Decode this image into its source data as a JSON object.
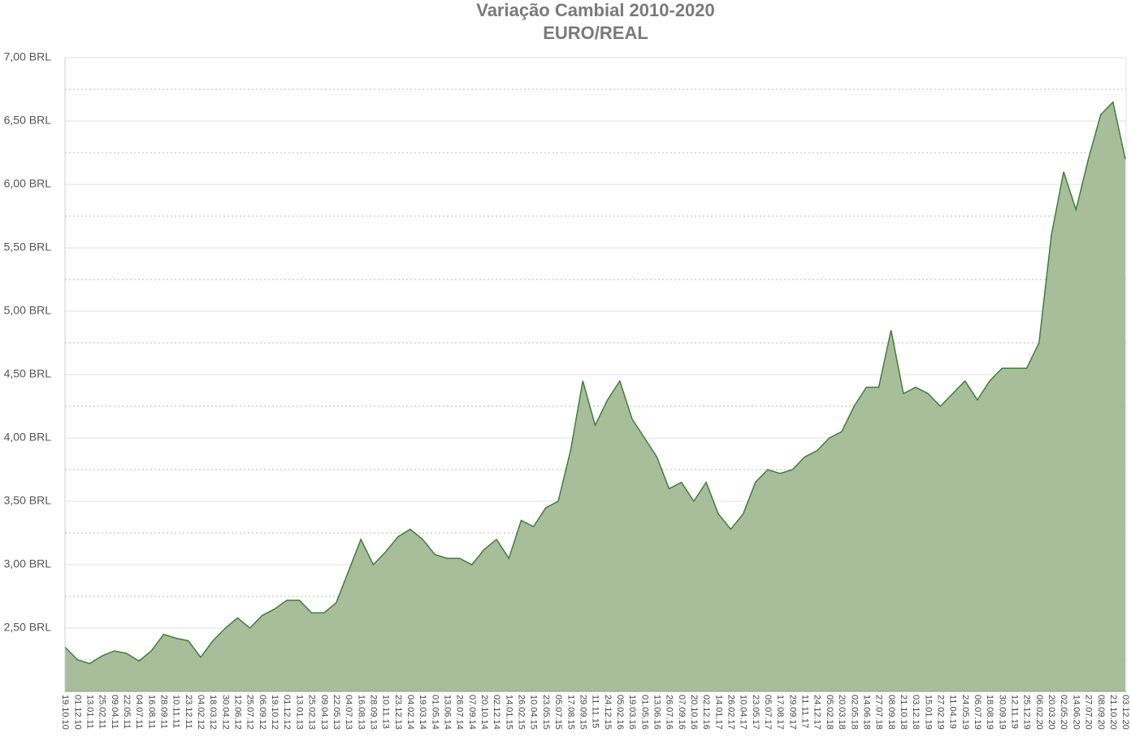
{
  "chart_data": {
    "type": "area",
    "title": "Variação Cambial 2010-2020",
    "subtitle": "EURO/REAL",
    "categories": [
      "19.10.10",
      "01.12.10",
      "13.01.11",
      "25.02.11",
      "09.04.11",
      "22.05.11",
      "04.07.11",
      "16.08.11",
      "28.09.11",
      "10.11.11",
      "23.12.11",
      "04.02.12",
      "18.03.12",
      "30.04.12",
      "12.06.12",
      "25.07.12",
      "06.09.12",
      "19.10.12",
      "01.12.12",
      "13.01.13",
      "25.02.13",
      "09.04.13",
      "22.05.13",
      "04.07.13",
      "16.08.13",
      "28.09.13",
      "10.11.13",
      "23.12.13",
      "04.02.14",
      "19.03.14",
      "01.05.14",
      "13.06.14",
      "26.07.14",
      "07.09.14",
      "20.10.14",
      "02.12.14",
      "14.01.15",
      "26.02.15",
      "10.04.15",
      "23.05.15",
      "05.07.15",
      "17.08.15",
      "29.09.15",
      "11.11.15",
      "24.12.15",
      "05.02.16",
      "19.03.16",
      "01.05.16",
      "13.06.16",
      "26.07.16",
      "07.09.16",
      "20.10.16",
      "02.12.16",
      "14.01.17",
      "26.02.17",
      "10.04.17",
      "23.05.17",
      "05.07.17",
      "17.08.17",
      "29.09.17",
      "11.11.17",
      "24.12.17",
      "05.02.18",
      "20.03.18",
      "02.05.18",
      "14.06.18",
      "27.07.18",
      "08.09.18",
      "21.10.18",
      "03.12.18",
      "15.01.19",
      "27.02.19",
      "11.04.19",
      "24.05.19",
      "06.07.19",
      "18.08.19",
      "30.09.19",
      "12.11.19",
      "25.12.19",
      "06.02.20",
      "20.03.20",
      "02.05.20",
      "14.06.20",
      "27.07.20",
      "08.09.20",
      "21.10.20",
      "03.12.20"
    ],
    "values": [
      2.35,
      2.25,
      2.22,
      2.28,
      2.32,
      2.3,
      2.24,
      2.32,
      2.45,
      2.42,
      2.4,
      2.27,
      2.4,
      2.5,
      2.58,
      2.5,
      2.6,
      2.65,
      2.72,
      2.72,
      2.62,
      2.62,
      2.7,
      2.95,
      3.2,
      3.0,
      3.1,
      3.22,
      3.28,
      3.2,
      3.08,
      3.05,
      3.05,
      3.0,
      3.12,
      3.2,
      3.05,
      3.35,
      3.3,
      3.45,
      3.5,
      3.9,
      4.45,
      4.1,
      4.3,
      4.45,
      4.15,
      4.0,
      3.85,
      3.6,
      3.65,
      3.5,
      3.65,
      3.4,
      3.28,
      3.4,
      3.65,
      3.75,
      3.72,
      3.75,
      3.85,
      3.9,
      4.0,
      4.05,
      4.25,
      4.4,
      4.4,
      4.85,
      4.35,
      4.4,
      4.35,
      4.25,
      4.35,
      4.45,
      4.3,
      4.45,
      4.55,
      4.55,
      4.55,
      4.75,
      5.6,
      6.1,
      5.8,
      6.2,
      6.55,
      6.65,
      6.2
    ],
    "fill": "#a8bd9a",
    "color": "#3f7f3a",
    "ylim": [
      2,
      7
    ],
    "yticks": [
      {
        "value": 2.5,
        "label": "2,50 BRL"
      },
      {
        "value": 3,
        "label": "3,00 BRL"
      },
      {
        "value": 3.5,
        "label": "3,50 BRL"
      },
      {
        "value": 4,
        "label": "4,00 BRL"
      },
      {
        "value": 4.5,
        "label": "4,50 BRL"
      },
      {
        "value": 5,
        "label": "5,00 BRL"
      },
      {
        "value": 5.5,
        "label": "5,50 BRL"
      },
      {
        "value": 6,
        "label": "6,00 BRL"
      },
      {
        "value": 6.5,
        "label": "6,50 BRL"
      },
      {
        "value": 7,
        "label": "7,00 BRL"
      }
    ],
    "minor_yticks": [
      2.25,
      2.75,
      3.25,
      3.75,
      4.25,
      4.75,
      5.25,
      5.75,
      6.25,
      6.75
    ],
    "grid": true
  }
}
